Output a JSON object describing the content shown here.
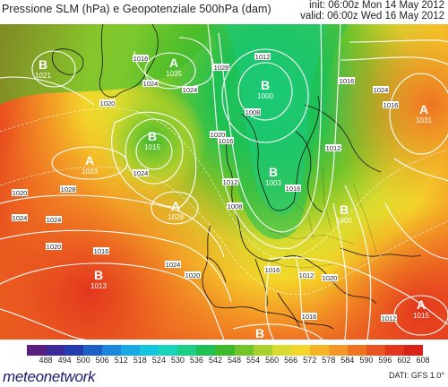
{
  "header": {
    "title": "Pressione SLM (hPa) e Geopotenziale 500hPa (dam)",
    "init": "init: 06:00z Mon 14 May 2012",
    "valid": "valid: 06:00z Wed 16 May 2012"
  },
  "pressure_centers": [
    {
      "type": "B",
      "value": "1021"
    },
    {
      "type": "A",
      "value": "1035"
    },
    {
      "type": "B",
      "value": "1000"
    },
    {
      "type": "B",
      "value": "1015"
    },
    {
      "type": "A",
      "value": "1033"
    },
    {
      "type": "A",
      "value": "1029"
    },
    {
      "type": "B",
      "value": "1003"
    },
    {
      "type": "A",
      "value": "1031"
    },
    {
      "type": "B",
      "value": "1005"
    },
    {
      "type": "B",
      "value": "1013"
    },
    {
      "type": "A",
      "value": "1015"
    },
    {
      "type": "B",
      "value": ""
    }
  ],
  "isobar_labels": [
    "1016",
    "1024",
    "1028",
    "1020",
    "1012",
    "1024",
    "1008",
    "1012",
    "1016",
    "1020",
    "1020",
    "1024",
    "1028",
    "1024",
    "1020",
    "1016",
    "1024",
    "1020",
    "1024",
    "1012",
    "1020",
    "1016",
    "1016",
    "1012",
    "1016",
    "1024",
    "1008",
    "1016",
    "1012",
    "1016"
  ],
  "colorbar": {
    "levels": [
      "488",
      "494",
      "500",
      "506",
      "512",
      "518",
      "524",
      "530",
      "536",
      "542",
      "548",
      "554",
      "560",
      "566",
      "572",
      "578",
      "584",
      "590",
      "596",
      "602",
      "608"
    ],
    "colors": [
      "#5a1f7e",
      "#3a2a9a",
      "#243aaf",
      "#1c5fc8",
      "#1a86dc",
      "#17a8e6",
      "#15c4de",
      "#19d4b8",
      "#1bcf86",
      "#1fc054",
      "#3cba2c",
      "#72c429",
      "#a8d12c",
      "#d9db2e",
      "#f4d62a",
      "#f6b527",
      "#f39625",
      "#ef7422",
      "#ea521f",
      "#e3361d",
      "#d8221a"
    ]
  },
  "footer": {
    "logo": "meteonetwork",
    "source": "DATI: GFS 1.0°"
  }
}
